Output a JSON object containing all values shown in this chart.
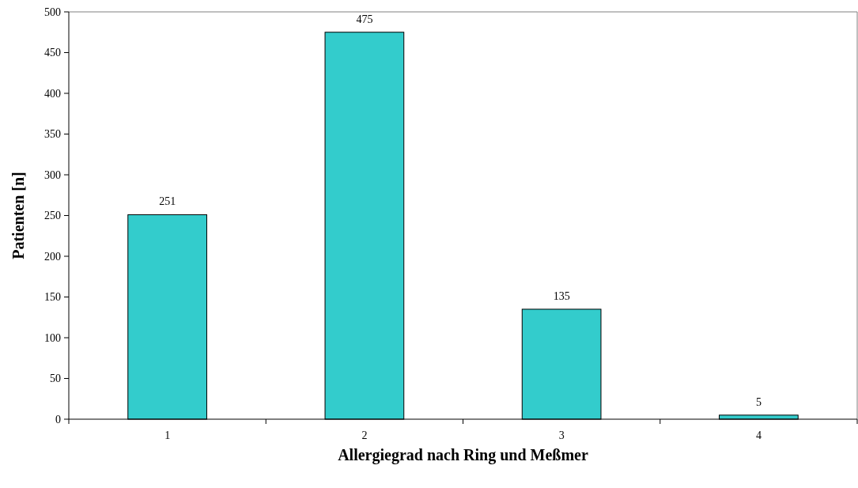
{
  "chart_data": {
    "type": "bar",
    "xlabel": "Allergiegrad nach Ring und Meßmer",
    "ylabel": "Patienten [n]",
    "categories": [
      "1",
      "2",
      "3",
      "4"
    ],
    "values": [
      251,
      475,
      135,
      5
    ],
    "color": "#33cccc",
    "ylim": [
      0,
      500
    ],
    "yticks": [
      0,
      50,
      100,
      150,
      200,
      250,
      300,
      350,
      400,
      450,
      500
    ],
    "grid": false,
    "data_labels": true
  }
}
